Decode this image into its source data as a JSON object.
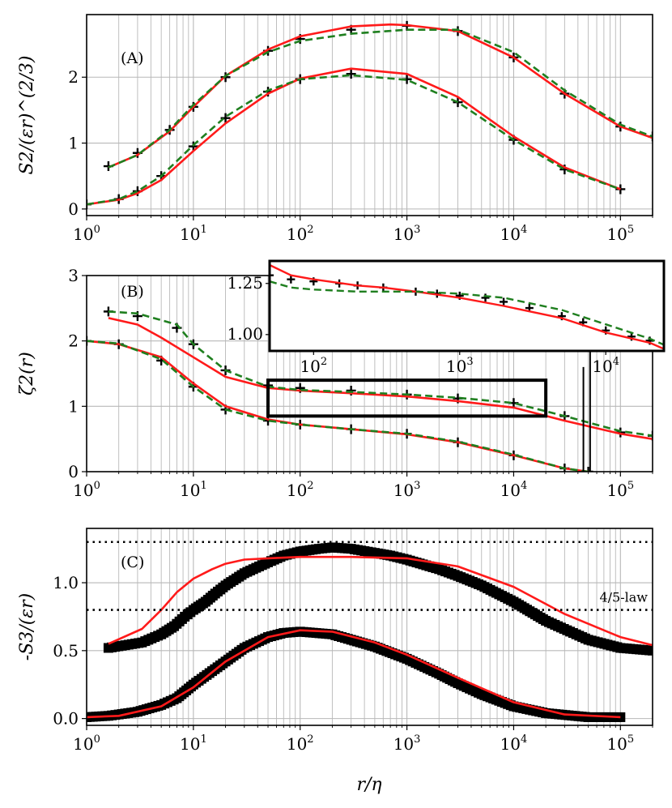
{
  "figure": {
    "xlabel": "r/η",
    "colors": {
      "model": "#ff1a1a",
      "fit": "#1f7f1f",
      "data": "#000000",
      "grid": "#b8b8b8"
    }
  },
  "chart_data": [
    {
      "id": "A",
      "type": "line",
      "panel_label": "(A)",
      "ylabel": "S2/(εr)^(2/3)",
      "xscale": "log",
      "xlim": [
        1,
        200000
      ],
      "ylim": [
        -0.1,
        2.95
      ],
      "x_ticks": [
        "10^0",
        "10^1",
        "10^2",
        "10^3",
        "10^4",
        "10^5"
      ],
      "y_ticks": [
        0,
        1,
        2
      ],
      "grid": true,
      "series": [
        {
          "name": "data upper",
          "style": "markers-plus",
          "x": [
            1.6,
            3,
            6,
            10,
            20,
            50,
            100,
            300,
            1000,
            3000,
            10000,
            30000,
            100000,
            200000
          ],
          "y": [
            0.65,
            0.85,
            1.2,
            1.55,
            2.0,
            2.4,
            2.58,
            2.72,
            2.78,
            2.7,
            2.3,
            1.75,
            1.25,
            1.1
          ]
        },
        {
          "name": "model upper",
          "style": "line-red",
          "x": [
            1.6,
            3,
            6,
            10,
            20,
            50,
            100,
            300,
            700,
            1000,
            3000,
            10000,
            30000,
            100000,
            200000
          ],
          "y": [
            0.63,
            0.82,
            1.18,
            1.55,
            2.02,
            2.42,
            2.62,
            2.77,
            2.8,
            2.79,
            2.7,
            2.3,
            1.75,
            1.25,
            1.08
          ]
        },
        {
          "name": "fit upper",
          "style": "line-green-dashed",
          "x": [
            1.6,
            3,
            6,
            10,
            20,
            50,
            100,
            300,
            1000,
            3000,
            10000,
            30000,
            100000,
            200000
          ],
          "y": [
            0.63,
            0.82,
            1.2,
            1.58,
            2.02,
            2.38,
            2.55,
            2.66,
            2.72,
            2.72,
            2.38,
            1.8,
            1.28,
            1.1
          ]
        },
        {
          "name": "data lower",
          "style": "markers-plus",
          "x": [
            1,
            2,
            3,
            5,
            10,
            20,
            50,
            100,
            300,
            1000,
            3000,
            10000,
            30000,
            100000
          ],
          "y": [
            0.07,
            0.15,
            0.27,
            0.5,
            0.95,
            1.38,
            1.78,
            1.97,
            2.05,
            1.97,
            1.62,
            1.05,
            0.6,
            0.3
          ]
        },
        {
          "name": "model lower",
          "style": "line-red",
          "x": [
            1,
            2,
            3,
            5,
            10,
            20,
            50,
            100,
            300,
            1000,
            3000,
            10000,
            30000,
            100000
          ],
          "y": [
            0.07,
            0.14,
            0.24,
            0.44,
            0.88,
            1.3,
            1.75,
            1.98,
            2.13,
            2.05,
            1.7,
            1.1,
            0.63,
            0.3
          ]
        },
        {
          "name": "fit lower",
          "style": "line-green-dashed",
          "x": [
            1,
            2,
            3,
            5,
            10,
            20,
            50,
            100,
            300,
            1000,
            3000,
            10000,
            30000,
            100000
          ],
          "y": [
            0.07,
            0.15,
            0.27,
            0.5,
            0.97,
            1.4,
            1.8,
            1.97,
            2.03,
            1.96,
            1.62,
            1.05,
            0.6,
            0.3
          ]
        }
      ]
    },
    {
      "id": "B",
      "type": "line",
      "panel_label": "(B)",
      "ylabel": "ζ2(r)",
      "xscale": "log",
      "xlim": [
        1,
        200000
      ],
      "ylim": [
        0,
        3
      ],
      "x_ticks": [
        "10^0",
        "10^1",
        "10^2",
        "10^3",
        "10^4",
        "10^5"
      ],
      "y_ticks": [
        0,
        1,
        2,
        3
      ],
      "grid": true,
      "series": [
        {
          "name": "data upper",
          "style": "markers-plus",
          "x": [
            1.6,
            3,
            7,
            10,
            20,
            50,
            100,
            300,
            1000,
            3000,
            10000,
            30000,
            100000,
            200000
          ],
          "y": [
            2.45,
            2.38,
            2.2,
            1.95,
            1.55,
            1.32,
            1.28,
            1.24,
            1.18,
            1.12,
            1.05,
            0.85,
            0.6,
            0.55
          ]
        },
        {
          "name": "model upper",
          "style": "line-red",
          "x": [
            1.6,
            3,
            5,
            10,
            20,
            50,
            100,
            300,
            1000,
            3000,
            10000,
            30000,
            100000,
            200000
          ],
          "y": [
            2.35,
            2.25,
            2.05,
            1.75,
            1.45,
            1.28,
            1.24,
            1.2,
            1.15,
            1.08,
            0.98,
            0.78,
            0.58,
            0.5
          ]
        },
        {
          "name": "fit upper",
          "style": "line-green-dashed",
          "x": [
            1.6,
            3,
            7,
            10,
            20,
            50,
            100,
            300,
            1000,
            3000,
            10000,
            30000,
            100000,
            200000
          ],
          "y": [
            2.45,
            2.42,
            2.25,
            1.95,
            1.55,
            1.3,
            1.25,
            1.22,
            1.18,
            1.13,
            1.05,
            0.85,
            0.62,
            0.55
          ]
        },
        {
          "name": "data lower",
          "style": "markers-plus",
          "x": [
            1,
            2,
            5,
            10,
            20,
            50,
            100,
            300,
            1000,
            3000,
            10000,
            30000,
            50000
          ],
          "y": [
            2.0,
            1.95,
            1.7,
            1.3,
            0.95,
            0.78,
            0.72,
            0.65,
            0.58,
            0.45,
            0.25,
            0.05,
            0.0
          ]
        },
        {
          "name": "model lower",
          "style": "line-red",
          "x": [
            1,
            2,
            5,
            10,
            20,
            50,
            100,
            300,
            1000,
            3000,
            10000,
            30000,
            50000
          ],
          "y": [
            2.0,
            1.95,
            1.75,
            1.35,
            1.0,
            0.8,
            0.72,
            0.65,
            0.57,
            0.45,
            0.25,
            0.05,
            0.0
          ]
        },
        {
          "name": "fit lower",
          "style": "line-green-dashed",
          "x": [
            1,
            2,
            5,
            10,
            20,
            50,
            100,
            300,
            1000,
            3000,
            10000,
            30000,
            50000
          ],
          "y": [
            2.0,
            1.96,
            1.72,
            1.3,
            0.95,
            0.78,
            0.72,
            0.65,
            0.58,
            0.46,
            0.26,
            0.05,
            0.0
          ]
        }
      ],
      "inset": {
        "xscale": "log",
        "xlim": [
          50,
          25000
        ],
        "ylim": [
          0.92,
          1.36
        ],
        "x_ticks": [
          "10^2",
          "10^3",
          "10^4"
        ],
        "y_ticks": [
          "1.00",
          "1.25"
        ],
        "series": [
          {
            "name": "data",
            "style": "markers-plus",
            "x": [
              50,
              70,
              100,
              150,
              200,
              300,
              500,
              700,
              1000,
              1500,
              2000,
              3000,
              5000,
              7000,
              10000,
              15000,
              20000
            ],
            "y": [
              1.29,
              1.27,
              1.26,
              1.25,
              1.24,
              1.23,
              1.21,
              1.2,
              1.19,
              1.18,
              1.16,
              1.13,
              1.09,
              1.06,
              1.02,
              0.99,
              0.97
            ]
          },
          {
            "name": "model",
            "style": "line-red",
            "x": [
              50,
              70,
              100,
              200,
              300,
              500,
              1000,
              2000,
              5000,
              10000,
              20000,
              25000
            ],
            "y": [
              1.34,
              1.29,
              1.27,
              1.24,
              1.23,
              1.21,
              1.18,
              1.14,
              1.08,
              1.01,
              0.96,
              0.93
            ]
          },
          {
            "name": "fit",
            "style": "line-green-dashed",
            "x": [
              50,
              70,
              100,
              200,
              300,
              500,
              1000,
              2000,
              5000,
              10000,
              20000,
              25000
            ],
            "y": [
              1.26,
              1.23,
              1.22,
              1.21,
              1.21,
              1.21,
              1.2,
              1.18,
              1.12,
              1.05,
              0.98,
              0.95
            ]
          }
        ]
      }
    },
    {
      "id": "C",
      "type": "line",
      "panel_label": "(C)",
      "ylabel": "-S3/(εr)",
      "xscale": "log",
      "xlim": [
        1,
        200000
      ],
      "ylim": [
        -0.05,
        1.4
      ],
      "x_ticks": [
        "10^0",
        "10^1",
        "10^2",
        "10^3",
        "10^4",
        "10^5"
      ],
      "y_ticks": [
        "0.0",
        "0.5",
        "1.0"
      ],
      "grid": true,
      "hlines": [
        0.8,
        1.3
      ],
      "annotation": "4/5-law",
      "series": [
        {
          "name": "data upper",
          "style": "markers-square",
          "x": [
            1.6,
            3.3,
            5,
            6.6,
            8.3,
            10,
            13,
            16,
            20,
            30,
            50,
            70,
            100,
            150,
            200,
            300,
            500,
            700,
            1000,
            2000,
            3000,
            5000,
            10000,
            20000,
            50000,
            100000,
            200000
          ],
          "y": [
            0.52,
            0.56,
            0.62,
            0.68,
            0.75,
            0.8,
            0.86,
            0.92,
            0.98,
            1.07,
            1.15,
            1.2,
            1.23,
            1.25,
            1.26,
            1.25,
            1.22,
            1.2,
            1.17,
            1.1,
            1.05,
            0.98,
            0.86,
            0.72,
            0.58,
            0.52,
            0.5
          ]
        },
        {
          "name": "model upper",
          "style": "line-red",
          "x": [
            1.6,
            3.3,
            5,
            7,
            10,
            15,
            20,
            30,
            50,
            100,
            300,
            1000,
            3000,
            10000,
            30000,
            100000,
            200000
          ],
          "y": [
            0.55,
            0.66,
            0.8,
            0.93,
            1.03,
            1.1,
            1.14,
            1.17,
            1.18,
            1.19,
            1.19,
            1.18,
            1.12,
            0.97,
            0.77,
            0.6,
            0.54
          ]
        },
        {
          "name": "data lower",
          "style": "markers-square",
          "x": [
            1,
            1.6,
            2,
            3,
            5,
            7,
            10,
            20,
            30,
            50,
            70,
            100,
            200,
            300,
            500,
            1000,
            2000,
            3000,
            5000,
            10000,
            20000,
            50000,
            100000
          ],
          "y": [
            0.01,
            0.02,
            0.03,
            0.05,
            0.1,
            0.15,
            0.25,
            0.42,
            0.52,
            0.6,
            0.63,
            0.64,
            0.62,
            0.58,
            0.53,
            0.44,
            0.33,
            0.26,
            0.18,
            0.09,
            0.04,
            0.01,
            0.01
          ]
        },
        {
          "name": "model lower",
          "style": "line-red",
          "x": [
            1,
            2,
            5,
            10,
            20,
            50,
            100,
            200,
            500,
            1000,
            3000,
            10000,
            30000,
            100000
          ],
          "y": [
            0.01,
            0.02,
            0.09,
            0.23,
            0.42,
            0.6,
            0.65,
            0.64,
            0.56,
            0.47,
            0.3,
            0.12,
            0.03,
            0.01
          ]
        }
      ]
    }
  ]
}
